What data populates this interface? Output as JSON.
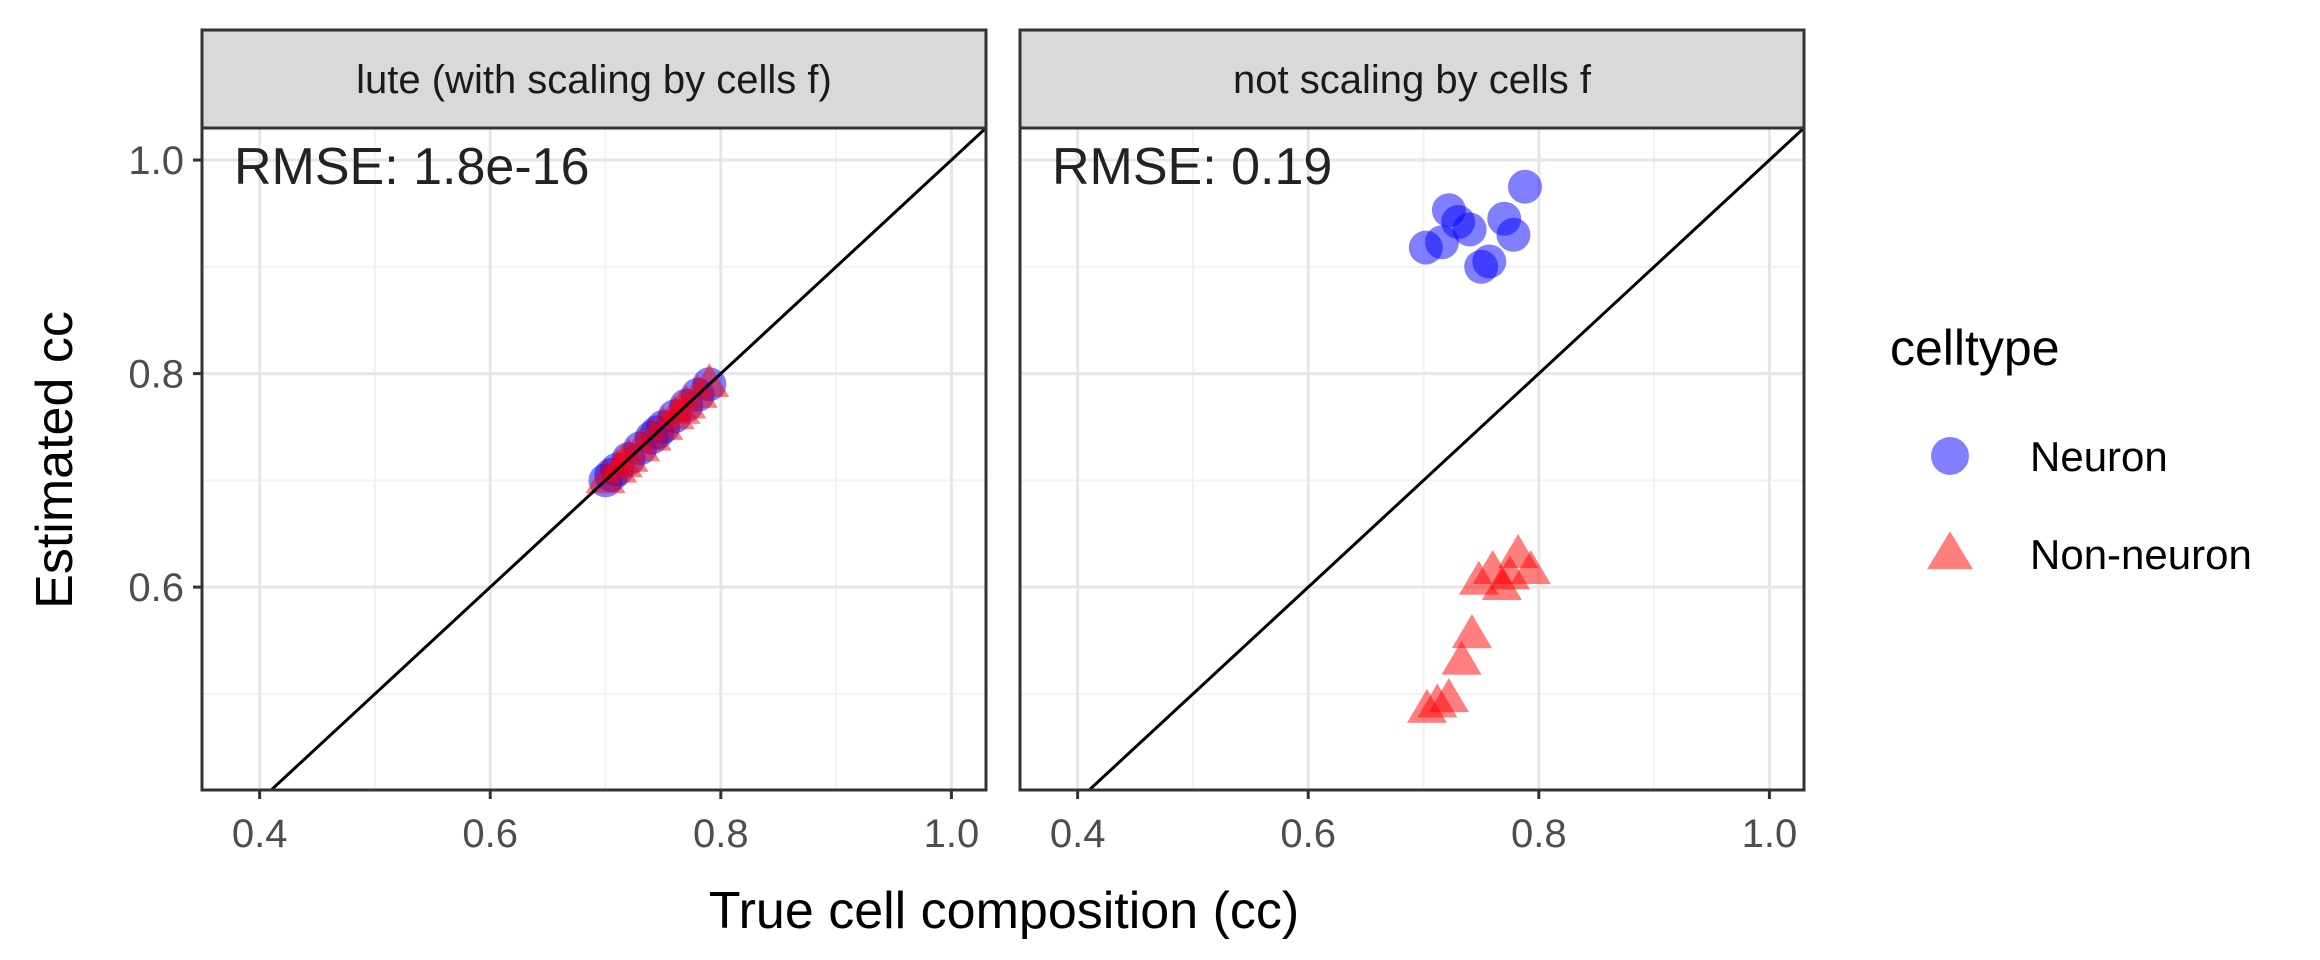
{
  "chart_data": {
    "type": "scatter",
    "xlabel": "True cell composition (cc)",
    "ylabel": "Estimated cc",
    "xlim": [
      0.35,
      1.03
    ],
    "ylim": [
      0.41,
      1.03
    ],
    "x_ticks": [
      0.4,
      0.6,
      0.8,
      1.0
    ],
    "x_tick_labels": [
      "0.4",
      "0.6",
      "0.8",
      "1.0"
    ],
    "y_ticks": [
      0.6,
      0.8,
      1.0
    ],
    "y_tick_labels": [
      "0.6",
      "0.8",
      "1.0"
    ],
    "y_minor_ticks": [
      0.5,
      0.7,
      0.9
    ],
    "x_minor_ticks": [
      0.5,
      0.7,
      0.9
    ],
    "grid": true,
    "reference_line": "identity",
    "legend": {
      "title": "celltype",
      "placement": "right",
      "entries": [
        {
          "label": "Neuron",
          "shape": "circle",
          "color": "#0000FF"
        },
        {
          "label": "Non-neuron",
          "shape": "triangle",
          "color": "#FF0000"
        }
      ]
    },
    "panels": [
      {
        "strip": "lute (with scaling by cells f)",
        "annotation": "RMSE: 1.8e-16",
        "series": [
          {
            "name": "Neuron",
            "points": [
              [
                0.7,
                0.7
              ],
              [
                0.71,
                0.71
              ],
              [
                0.72,
                0.72
              ],
              [
                0.73,
                0.73
              ],
              [
                0.74,
                0.74
              ],
              [
                0.75,
                0.75
              ],
              [
                0.76,
                0.76
              ],
              [
                0.77,
                0.77
              ],
              [
                0.78,
                0.78
              ],
              [
                0.79,
                0.79
              ],
              [
                0.705,
                0.705
              ],
              [
                0.745,
                0.745
              ]
            ]
          },
          {
            "name": "Non-neuron",
            "points": [
              [
                0.7,
                0.7
              ],
              [
                0.71,
                0.71
              ],
              [
                0.72,
                0.72
              ],
              [
                0.73,
                0.73
              ],
              [
                0.74,
                0.74
              ],
              [
                0.75,
                0.75
              ],
              [
                0.76,
                0.76
              ],
              [
                0.77,
                0.77
              ],
              [
                0.78,
                0.78
              ],
              [
                0.79,
                0.79
              ],
              [
                0.715,
                0.715
              ],
              [
                0.765,
                0.765
              ]
            ]
          }
        ]
      },
      {
        "strip": "not scaling by cells f",
        "annotation": "RMSE: 0.19",
        "series": [
          {
            "name": "Neuron",
            "points": [
              [
                0.702,
                0.918
              ],
              [
                0.716,
                0.923
              ],
              [
                0.722,
                0.953
              ],
              [
                0.73,
                0.942
              ],
              [
                0.74,
                0.935
              ],
              [
                0.75,
                0.9
              ],
              [
                0.757,
                0.905
              ],
              [
                0.77,
                0.945
              ],
              [
                0.778,
                0.93
              ],
              [
                0.788,
                0.975
              ]
            ]
          },
          {
            "name": "Non-neuron",
            "points": [
              [
                0.703,
                0.485
              ],
              [
                0.712,
                0.49
              ],
              [
                0.722,
                0.495
              ],
              [
                0.733,
                0.53
              ],
              [
                0.742,
                0.555
              ],
              [
                0.748,
                0.605
              ],
              [
                0.76,
                0.615
              ],
              [
                0.768,
                0.6
              ],
              [
                0.775,
                0.61
              ],
              [
                0.782,
                0.63
              ],
              [
                0.793,
                0.615
              ]
            ]
          }
        ]
      }
    ]
  }
}
